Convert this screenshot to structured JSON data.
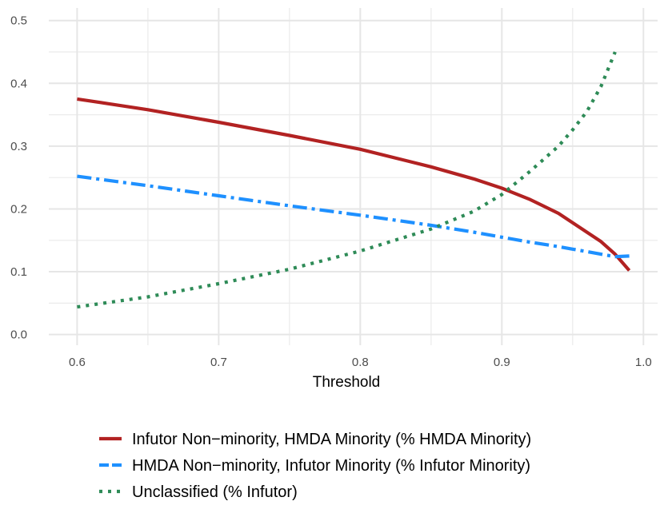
{
  "chart_data": {
    "type": "line",
    "title": "",
    "xlabel": "Threshold",
    "ylabel": "",
    "xlim": [
      0.58,
      1.01
    ],
    "ylim": [
      -0.017,
      0.52
    ],
    "xticks": [
      0.6,
      0.7,
      0.8,
      0.9,
      1.0
    ],
    "xtick_labels": [
      "0.6",
      "0.7",
      "0.8",
      "0.9",
      "1.0"
    ],
    "yticks": [
      0.0,
      0.1,
      0.2,
      0.3,
      0.4,
      0.5
    ],
    "ytick_labels": [
      "0.0",
      "0.1",
      "0.2",
      "0.3",
      "0.4",
      "0.5"
    ],
    "grid": true,
    "legend_position": "bottom",
    "x": [
      0.6,
      0.65,
      0.7,
      0.75,
      0.8,
      0.85,
      0.88,
      0.9,
      0.92,
      0.94,
      0.95,
      0.96,
      0.97,
      0.98,
      0.99
    ],
    "series": [
      {
        "name": "Infutor Non−minority, HMDA Minority (% HMDA Minority)",
        "color": "#B22222",
        "dash": "solid",
        "values": [
          0.375,
          0.358,
          0.338,
          0.317,
          0.295,
          0.267,
          0.248,
          0.233,
          0.215,
          0.193,
          0.178,
          0.163,
          0.148,
          0.128,
          0.102
        ]
      },
      {
        "name": "HMDA Non−minority, Infutor Minority (% Infutor Minority)",
        "color": "#1E90FF",
        "dash": "dashdot",
        "values": [
          0.252,
          0.237,
          0.221,
          0.205,
          0.19,
          0.174,
          0.163,
          0.155,
          0.147,
          0.14,
          0.136,
          0.132,
          0.128,
          0.124,
          0.125
        ]
      },
      {
        "name": "Unclassified (% Infutor)",
        "color": "#2E8B57",
        "dash": "dotted",
        "values": [
          0.044,
          0.06,
          0.081,
          0.104,
          0.133,
          0.168,
          0.196,
          0.223,
          0.26,
          0.3,
          0.326,
          0.355,
          0.395,
          0.45,
          null
        ]
      }
    ]
  }
}
